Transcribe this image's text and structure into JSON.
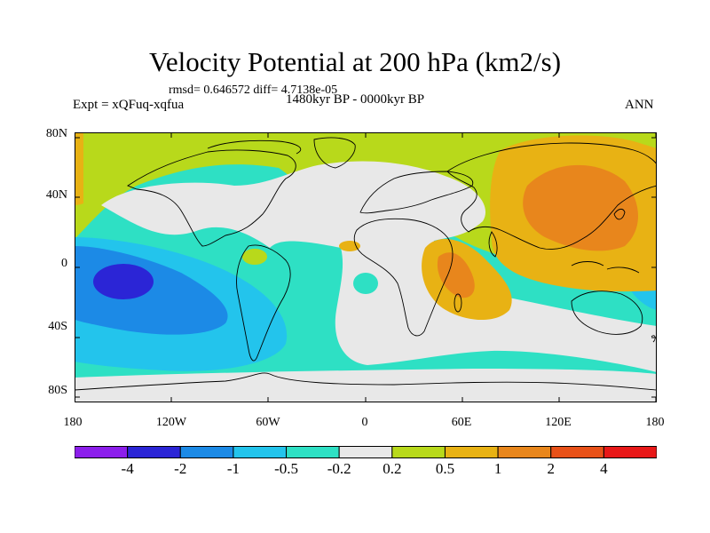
{
  "title": "Velocity Potential at 200 hPa (km2/s)",
  "stats": "rmsd= 0.646572 diff= 4.7138e-05",
  "left_label": "Expt = xQFuq-xqfua",
  "center_label": "1480kyr BP - 0000kyr BP",
  "right_label": "ANN",
  "lat_labels": [
    "80N",
    "40N",
    "0",
    "40S",
    "80S"
  ],
  "lon_labels": [
    "180",
    "120W",
    "60W",
    "0",
    "60E",
    "120E",
    "180"
  ],
  "colorbar": {
    "colors": [
      "#8c1eeb",
      "#2b25d6",
      "#1c8ae6",
      "#23c4ec",
      "#2ee0c4",
      "#e8e8e8",
      "#b8d91b",
      "#e8b214",
      "#e8861c",
      "#e85118",
      "#e81818"
    ],
    "labels": [
      "-4",
      "-2",
      "-1",
      "-0.5",
      "-0.2",
      "0.2",
      "0.5",
      "1",
      "2",
      "4"
    ]
  },
  "chart_data": {
    "type": "heatmap",
    "title": "Velocity Potential at 200 hPa (km2/s)",
    "xlim": [
      -180,
      180
    ],
    "ylim": [
      -90,
      90
    ],
    "levels": [
      -4,
      -2,
      -1,
      -0.5,
      -0.2,
      0.2,
      0.5,
      1,
      2,
      4
    ],
    "regions": [
      {
        "area": "Western Pacific / East Asia",
        "range": "1 to 2"
      },
      {
        "area": "East Africa / western Indian Ocean",
        "range": "1 to 2"
      },
      {
        "area": "Southeast Pacific (15S,140W)",
        "range": "-4 to -2"
      },
      {
        "area": "South Pacific",
        "range": "-2 to -1"
      },
      {
        "area": "Arctic and high northern latitudes",
        "range": "0.2 to 0.5"
      },
      {
        "area": "Atlantic / southern Africa",
        "range": "-0.2 to 0.2"
      }
    ]
  }
}
